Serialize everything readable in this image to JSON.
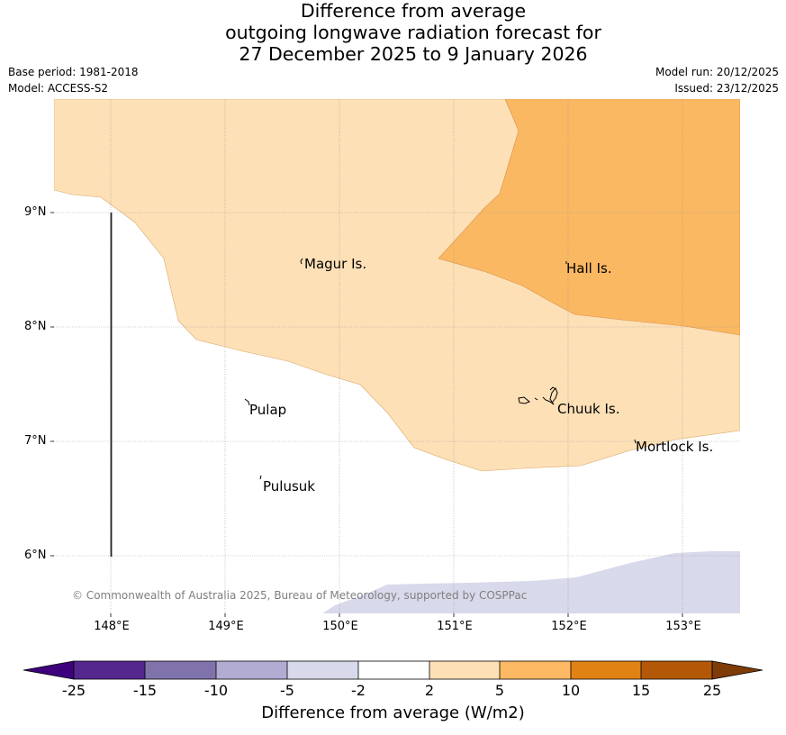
{
  "title": {
    "line1": "Difference from average",
    "line2": "outgoing longwave radiation forecast for",
    "line3": "27 December 2025 to 9 January 2026"
  },
  "meta": {
    "base_period": "Base period: 1981-2018",
    "model": "Model: ACCESS-S2",
    "model_run": "Model run: 20/12/2025",
    "issued": "Issued: 23/12/2025"
  },
  "map": {
    "lat_labels": [
      "9°N",
      "8°N",
      "7°N",
      "6°N"
    ],
    "lon_labels": [
      "148°E",
      "149°E",
      "150°E",
      "151°E",
      "152°E",
      "153°E"
    ],
    "places": [
      {
        "name": "Magur Is."
      },
      {
        "name": "Hall Is."
      },
      {
        "name": "Pulap"
      },
      {
        "name": "Chuuk Is."
      },
      {
        "name": "Mortlock Is."
      },
      {
        "name": "Pulusuk"
      }
    ],
    "copyright": "© Commonwealth of Australia 2025, Bureau of Meteorology, supported by COSPPac",
    "colors": {
      "band_2_5": "#fde0b6",
      "band_5_10": "#fbb862",
      "band_neg5_neg2": "#d8d9ea"
    }
  },
  "colorbar": {
    "title": "Difference from average (W/m2)",
    "tick_labels": [
      "-25",
      "-15",
      "-10",
      "-5",
      "-2",
      "2",
      "5",
      "10",
      "15",
      "25"
    ],
    "colors": [
      "#3f007d",
      "#54278f",
      "#8073ac",
      "#b2abd2",
      "#d8daeb",
      "#ffffff",
      "#fee0b6",
      "#fdb863",
      "#e08214",
      "#b35806",
      "#7f3b08"
    ]
  }
}
